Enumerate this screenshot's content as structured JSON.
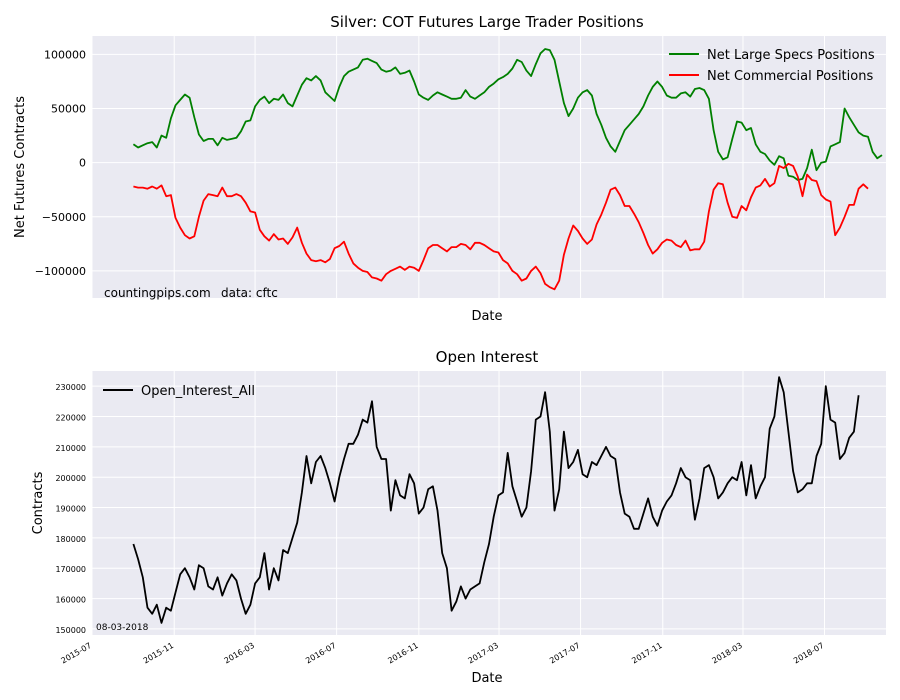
{
  "colors": {
    "panel_bg": "#EAEAF2",
    "grid": "#FFFFFF",
    "specs": "#008000",
    "commercial": "#FF0000",
    "open_interest": "#000000",
    "text": "#000000"
  },
  "chart_data": [
    {
      "type": "line",
      "title": "Silver: COT Futures Large Trader Positions",
      "xlabel": "Date",
      "ylabel": "Net Futures Contracts",
      "ylim": [
        -125000,
        117000
      ],
      "yticks": [
        100000,
        50000,
        0,
        -50000,
        -100000
      ],
      "ytick_labels": [
        "100000",
        "50000",
        "0",
        "−50000",
        "−100000"
      ],
      "xlim": [
        "2015-07-01",
        "2018-10-01"
      ],
      "x_tick_labels_visible": false,
      "grid": true,
      "legend_placement": "top-right",
      "annotations": [
        "countingpips.com",
        "data: cftc"
      ],
      "x_start": "2015-09-01",
      "x_step_days": 7,
      "series": [
        {
          "name": "Net Large Specs Positions",
          "color": "#008000",
          "values": [
            17000,
            14000,
            16000,
            18000,
            19000,
            14000,
            25000,
            23000,
            41000,
            53000,
            58000,
            63000,
            60000,
            42000,
            26000,
            20000,
            22000,
            22000,
            16000,
            23000,
            21000,
            22000,
            23000,
            29000,
            38000,
            39000,
            52000,
            58000,
            61000,
            55000,
            59000,
            58000,
            63000,
            55000,
            52000,
            62000,
            72000,
            78000,
            76000,
            80000,
            76000,
            65000,
            61000,
            57000,
            70000,
            80000,
            84000,
            86000,
            88000,
            95000,
            96000,
            94000,
            92000,
            86000,
            84000,
            85000,
            88000,
            82000,
            83000,
            85000,
            75000,
            63000,
            60000,
            58000,
            62000,
            65000,
            63000,
            61000,
            59000,
            59000,
            60000,
            67000,
            61000,
            59000,
            62000,
            65000,
            70000,
            73000,
            77000,
            79000,
            82000,
            87000,
            95000,
            93000,
            85000,
            80000,
            91000,
            101000,
            105000,
            104000,
            95000,
            75000,
            55000,
            43000,
            50000,
            60000,
            65000,
            67000,
            62000,
            45000,
            35000,
            23000,
            15000,
            10000,
            20000,
            30000,
            35000,
            40000,
            45000,
            52000,
            62000,
            70000,
            75000,
            70000,
            62000,
            60000,
            60000,
            64000,
            65000,
            61000,
            68000,
            69000,
            67000,
            59000,
            30000,
            10000,
            3000,
            5000,
            22000,
            38000,
            37000,
            30000,
            32000,
            17000,
            10000,
            8000,
            2000,
            -2000,
            6000,
            4000,
            -12000,
            -13000,
            -16000,
            -15000,
            -5000,
            12000,
            -7000,
            0,
            1000,
            15000,
            17000,
            19000,
            50000,
            42000,
            35000,
            28000,
            25000,
            24000,
            10000,
            4000,
            7000
          ]
        },
        {
          "name": "Net Commercial Positions",
          "color": "#FF0000",
          "values": [
            -22000,
            -23000,
            -23000,
            -24000,
            -22000,
            -24000,
            -21000,
            -31000,
            -30000,
            -51000,
            -60000,
            -67000,
            -70000,
            -68000,
            -50000,
            -35000,
            -29000,
            -30000,
            -31000,
            -23000,
            -31000,
            -31000,
            -29000,
            -31000,
            -37000,
            -45000,
            -46000,
            -62000,
            -68000,
            -72000,
            -66000,
            -71000,
            -70000,
            -75000,
            -69000,
            -60000,
            -74000,
            -84000,
            -90000,
            -91000,
            -90000,
            -92000,
            -89000,
            -79000,
            -77000,
            -73000,
            -84000,
            -93000,
            -97000,
            -100000,
            -101000,
            -106000,
            -107000,
            -109000,
            -103000,
            -100000,
            -98000,
            -96000,
            -99000,
            -96000,
            -97000,
            -100000,
            -90000,
            -79000,
            -76000,
            -76000,
            -79000,
            -82000,
            -78000,
            -78000,
            -75000,
            -76000,
            -80000,
            -74000,
            -74000,
            -76000,
            -79000,
            -82000,
            -83000,
            -90000,
            -93000,
            -100000,
            -103000,
            -109000,
            -107000,
            -100000,
            -96000,
            -102000,
            -112000,
            -115000,
            -117000,
            -109000,
            -85000,
            -70000,
            -58000,
            -63000,
            -70000,
            -75000,
            -71000,
            -57000,
            -48000,
            -37000,
            -25000,
            -23000,
            -30000,
            -40000,
            -40000,
            -47000,
            -55000,
            -65000,
            -76000,
            -84000,
            -80000,
            -74000,
            -71000,
            -72000,
            -76000,
            -78000,
            -72000,
            -81000,
            -80000,
            -80000,
            -73000,
            -45000,
            -25000,
            -19000,
            -20000,
            -37000,
            -50000,
            -51000,
            -40000,
            -44000,
            -32000,
            -23000,
            -21000,
            -15000,
            -22000,
            -19000,
            -3000,
            -5000,
            -1000,
            -3000,
            -13000,
            -31000,
            -11000,
            -16000,
            -17000,
            -30000,
            -34000,
            -36000,
            -67000,
            -60000,
            -50000,
            -39000,
            -39000,
            -24000,
            -20000,
            -24000
          ]
        }
      ]
    },
    {
      "type": "line",
      "title": "Open Interest",
      "xlabel": "Date",
      "ylabel": "Contracts",
      "ylim": [
        148000,
        235000
      ],
      "yticks": [
        150000,
        160000,
        170000,
        180000,
        190000,
        200000,
        210000,
        220000,
        230000
      ],
      "ytick_labels": [
        "150000",
        "160000",
        "170000",
        "180000",
        "190000",
        "200000",
        "210000",
        "220000",
        "230000"
      ],
      "xlim": [
        "2015-07-01",
        "2018-10-01"
      ],
      "xtick_dates": [
        "2015-07-01",
        "2015-11-01",
        "2016-03-01",
        "2016-07-01",
        "2016-11-01",
        "2017-03-01",
        "2017-07-01",
        "2017-11-01",
        "2018-03-01",
        "2018-07-01"
      ],
      "xtick_labels": [
        "2015-07",
        "2015-11",
        "2016-03",
        "2016-07",
        "2016-11",
        "2017-03",
        "2017-07",
        "2017-11",
        "2018-03",
        "2018-07"
      ],
      "grid": true,
      "legend_placement": "top-left",
      "annotations": [
        "08-03-2018"
      ],
      "x_start": "2015-09-01",
      "x_step_days": 7,
      "series": [
        {
          "name": "Open_Interest_All",
          "color": "#000000",
          "values": [
            178000,
            173000,
            167000,
            157000,
            155000,
            158000,
            152000,
            157000,
            156000,
            162000,
            168000,
            170000,
            167000,
            163000,
            171000,
            170000,
            164000,
            163000,
            167000,
            161000,
            165000,
            168000,
            166000,
            160000,
            155000,
            158000,
            165000,
            167000,
            175000,
            163000,
            170000,
            166000,
            176000,
            175000,
            180000,
            185000,
            195000,
            207000,
            198000,
            205000,
            207000,
            203000,
            198000,
            192000,
            200000,
            206000,
            211000,
            211000,
            214000,
            219000,
            218000,
            225000,
            210000,
            206000,
            206000,
            189000,
            199000,
            194000,
            193000,
            201000,
            198000,
            188000,
            190000,
            196000,
            197000,
            189000,
            175000,
            170000,
            156000,
            159000,
            164000,
            160000,
            163000,
            164000,
            165000,
            172000,
            178000,
            187000,
            194000,
            195000,
            208000,
            197000,
            192000,
            187000,
            190000,
            202000,
            219000,
            220000,
            228000,
            215000,
            189000,
            196000,
            215000,
            203000,
            205000,
            209000,
            201000,
            200000,
            205000,
            204000,
            207000,
            210000,
            207000,
            206000,
            195000,
            188000,
            187000,
            183000,
            183000,
            188000,
            193000,
            187000,
            184000,
            189000,
            192000,
            194000,
            198000,
            203000,
            200000,
            199000,
            186000,
            193000,
            203000,
            204000,
            200000,
            193000,
            195000,
            198000,
            200000,
            199000,
            205000,
            194000,
            204000,
            193000,
            197000,
            200000,
            216000,
            220000,
            233000,
            228000,
            215000,
            202000,
            195000,
            196000,
            198000,
            198000,
            207000,
            211000,
            230000,
            219000,
            218000,
            206000,
            208000,
            213000,
            215000,
            227000
          ]
        }
      ]
    }
  ]
}
